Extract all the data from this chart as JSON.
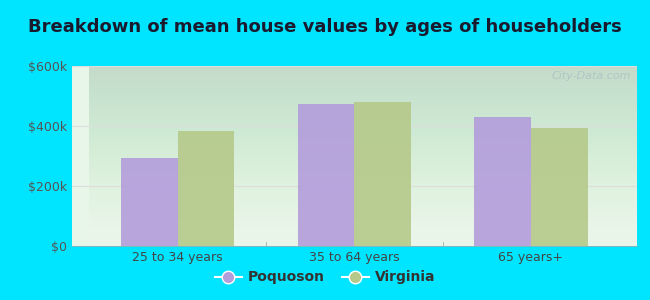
{
  "title": "Breakdown of mean house values by ages of householders",
  "categories": [
    "25 to 34 years",
    "35 to 64 years",
    "65 years+"
  ],
  "poquoson_values": [
    295000,
    475000,
    430000
  ],
  "virginia_values": [
    385000,
    480000,
    395000
  ],
  "bar_color_poquoson": "#b39ddb",
  "bar_color_virginia": "#b5c98a",
  "ylim": [
    0,
    600000
  ],
  "yticks": [
    0,
    200000,
    400000,
    600000
  ],
  "ytick_labels": [
    "$0",
    "$200k",
    "$400k",
    "$600k"
  ],
  "legend_labels": [
    "Poquoson",
    "Virginia"
  ],
  "background_outer": "#00e5ff",
  "background_inner_top": "#e8f5e9",
  "title_fontsize": 13,
  "tick_fontsize": 9,
  "legend_fontsize": 10,
  "bar_width": 0.32,
  "watermark": "City-Data.com"
}
